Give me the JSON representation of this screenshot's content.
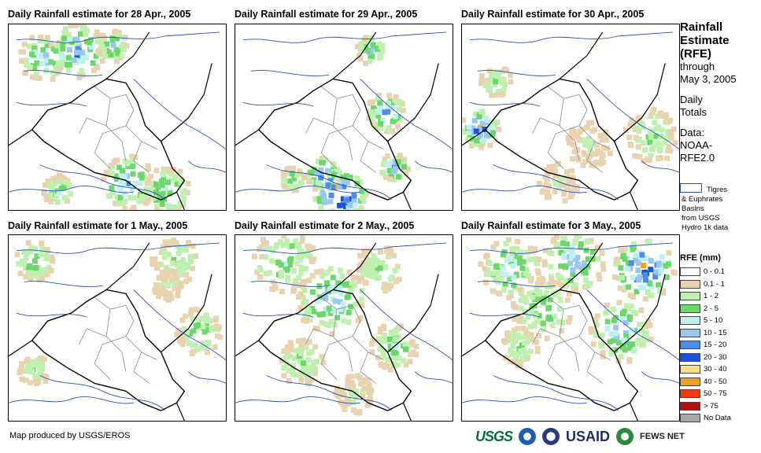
{
  "panels": [
    {
      "title": "Daily Rainfall estimate for 28 Apr., 2005"
    },
    {
      "title": "Daily Rainfall estimate for 29 Apr., 2005"
    },
    {
      "title": "Daily Rainfall estimate for 30 Apr., 2005"
    },
    {
      "title": "Daily Rainfall estimate for 1 May., 2005"
    },
    {
      "title": "Daily Rainfall estimate for 2 May., 2005"
    },
    {
      "title": "Daily Rainfall estimate for 3 May., 2005"
    }
  ],
  "sidebar": {
    "title_lines": [
      "Rainfall",
      "Estimate",
      "(RFE)"
    ],
    "subtitle_lines": [
      "through",
      "May 3, 2005"
    ],
    "totals_lines": [
      "Daily",
      "Totals"
    ],
    "data_lines": [
      "Data:",
      "NOAA-",
      "RFE2.0"
    ],
    "basin_note_lines": [
      "Tigres",
      "& Euphrates",
      "Basins",
      "from USGS",
      "Hydro 1k data"
    ],
    "legend_title": "RFE (mm)"
  },
  "legend": [
    {
      "label": "0 - 0.1",
      "color": "#ffffff"
    },
    {
      "label": "0.1 - 1",
      "color": "#e8d2b0"
    },
    {
      "label": "1 - 2",
      "color": "#bff0b0"
    },
    {
      "label": "2 - 5",
      "color": "#6cd86c"
    },
    {
      "label": "5 - 10",
      "color": "#bff0ef"
    },
    {
      "label": "10 - 15",
      "color": "#98c8f0"
    },
    {
      "label": "15 - 20",
      "color": "#4a8ee8"
    },
    {
      "label": "20 - 30",
      "color": "#1a52d8"
    },
    {
      "label": "30 - 40",
      "color": "#f8e08a"
    },
    {
      "label": "40 - 50",
      "color": "#f0a020"
    },
    {
      "label": "50 - 75",
      "color": "#f03c10"
    },
    {
      "label": "> 75",
      "color": "#b01010"
    },
    {
      "label": "No Data",
      "color": "#a8a8a8"
    }
  ],
  "footer": {
    "credit": "Map produced by USGS/EROS"
  },
  "logos": {
    "usgs": "USGS",
    "usaid": "USAID",
    "fews": "FEWS NET"
  },
  "colors": {
    "river": "#2a4fbf",
    "border": "#000000",
    "admin": "#8a8a8a"
  }
}
